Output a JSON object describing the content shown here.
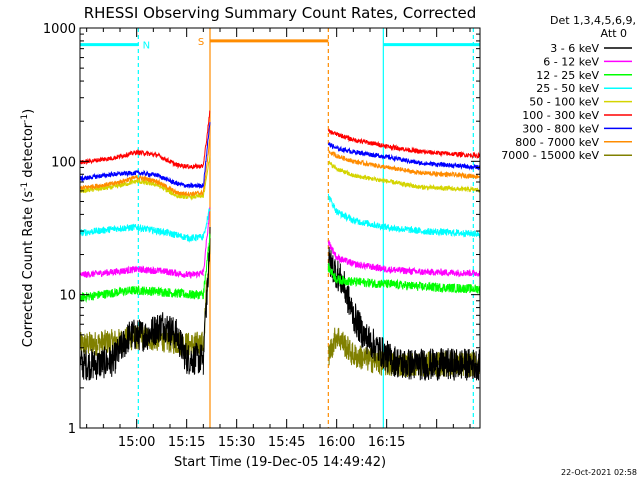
{
  "chart_data": {
    "type": "line",
    "title": "RHESSI Observing Summary Count Rates, Corrected",
    "xlabel": "Start Time (19-Dec-05 14:49:42)",
    "ylabel_main": "Corrected Count Rate (s",
    "ylabel_sup1": "-1",
    "ylabel_mid": " detector",
    "ylabel_sup2": "-1",
    "ylabel_end": ")",
    "yscale": "log",
    "ylim": [
      1,
      1000
    ],
    "xlim_min": [
      -7,
      113
    ],
    "y_ticks": [
      "1",
      "10",
      "100",
      "1000"
    ],
    "x_ticks": [
      {
        "min": 10,
        "label": "15:00"
      },
      {
        "min": 25,
        "label": "15:15"
      },
      {
        "min": 40,
        "label": "15:30"
      },
      {
        "min": 55,
        "label": "15:45"
      },
      {
        "min": 70,
        "label": "16:00"
      },
      {
        "min": 85,
        "label": "16:15"
      }
    ],
    "legend_header": [
      "Det 1,3,4,5,6,9,",
      "Att 0"
    ],
    "legend_placement": "right",
    "series": [
      {
        "name": "3 - 6 keV",
        "color": "#000000"
      },
      {
        "name": "6 - 12 keV",
        "color": "#ff00ff"
      },
      {
        "name": "12 - 25 keV",
        "color": "#00ff00"
      },
      {
        "name": "25 - 50 keV",
        "color": "#00ffff"
      },
      {
        "name": "50 - 100 keV",
        "color": "#d4d400"
      },
      {
        "name": "100 - 300 keV",
        "color": "#ff0000"
      },
      {
        "name": "300 - 800 keV",
        "color": "#0000ff"
      },
      {
        "name": "800 - 7000 keV",
        "color": "#ff8c00"
      },
      {
        "name": "7000 - 15000 keV",
        "color": "#808000"
      }
    ],
    "segments": [
      {
        "from": -7,
        "to": 30,
        "values": [
          [
            [
              -7,
              3
            ],
            [
              -2,
              3
            ],
            [
              3,
              3.2
            ],
            [
              8,
              5
            ],
            [
              13,
              5
            ],
            [
              18,
              6
            ],
            [
              22,
              5
            ],
            [
              25,
              3.3
            ],
            [
              29.5,
              3.3
            ],
            [
              30,
              3.3
            ]
          ],
          [
            [
              -7,
              14
            ],
            [
              3,
              14.8
            ],
            [
              10,
              15.5
            ],
            [
              18,
              15
            ],
            [
              26,
              14
            ],
            [
              29.5,
              14.5
            ],
            [
              30,
              14.5
            ]
          ],
          [
            [
              -7,
              9.5
            ],
            [
              5,
              10.5
            ],
            [
              10,
              10.8
            ],
            [
              18,
              10.5
            ],
            [
              26,
              10
            ],
            [
              29.5,
              10
            ],
            [
              30,
              10
            ]
          ],
          [
            [
              -7,
              29
            ],
            [
              5,
              31.5
            ],
            [
              10,
              32
            ],
            [
              18,
              29.5
            ],
            [
              26,
              26.5
            ],
            [
              29.5,
              27
            ],
            [
              30,
              27
            ]
          ],
          [
            [
              -7,
              60
            ],
            [
              3,
              64
            ],
            [
              10,
              71
            ],
            [
              16,
              67
            ],
            [
              22,
              55
            ],
            [
              26,
              54
            ],
            [
              29.5,
              55
            ],
            [
              30,
              55
            ]
          ],
          [
            [
              -7,
              98
            ],
            [
              3,
              106
            ],
            [
              10,
              117
            ],
            [
              16,
              112
            ],
            [
              22,
              94
            ],
            [
              26,
              91
            ],
            [
              29.5,
              92
            ],
            [
              30,
              92
            ]
          ],
          [
            [
              -7,
              74
            ],
            [
              3,
              80
            ],
            [
              10,
              82
            ],
            [
              16,
              79
            ],
            [
              22,
              68
            ],
            [
              26,
              65
            ],
            [
              29.5,
              66
            ],
            [
              30,
              66
            ]
          ],
          [
            [
              -7,
              63
            ],
            [
              3,
              68
            ],
            [
              10,
              76
            ],
            [
              16,
              71
            ],
            [
              22,
              58
            ],
            [
              26,
              57
            ],
            [
              29.5,
              58
            ],
            [
              30,
              58
            ]
          ],
          [
            [
              -7,
              4.2
            ],
            [
              5,
              4.5
            ],
            [
              10,
              4.8
            ],
            [
              18,
              4.6
            ],
            [
              26,
              4.2
            ],
            [
              29.5,
              4.3
            ],
            [
              30,
              4.3
            ]
          ]
        ]
      },
      {
        "from": 30,
        "to": 32,
        "values": [
          [
            [
              30,
              3.3
            ],
            [
              32,
              25
            ]
          ],
          [
            [
              30,
              14.5
            ],
            [
              32,
              45
            ]
          ],
          [
            [
              30,
              10
            ],
            [
              32,
              28
            ]
          ],
          [
            [
              30,
              27
            ],
            [
              32,
              45
            ]
          ],
          [
            [
              30,
              55
            ],
            [
              32,
              110
            ]
          ],
          [
            [
              30,
              92
            ],
            [
              32,
              240
            ]
          ],
          [
            [
              30,
              66
            ],
            [
              32,
              200
            ]
          ],
          [
            [
              30,
              58
            ],
            [
              32,
              150
            ]
          ],
          [
            [
              30,
              4.3
            ],
            [
              32,
              25
            ]
          ]
        ]
      },
      {
        "from": 67.5,
        "to": 113,
        "values": [
          [
            [
              67.5,
              18
            ],
            [
              69,
              16
            ],
            [
              72,
              12
            ],
            [
              75,
              7
            ],
            [
              78,
              5
            ],
            [
              82,
              4
            ],
            [
              86,
              3.3
            ],
            [
              90,
              3
            ],
            [
              100,
              3
            ],
            [
              113,
              3
            ]
          ],
          [
            [
              67.5,
              25
            ],
            [
              70,
              19
            ],
            [
              75,
              17
            ],
            [
              85,
              15.5
            ],
            [
              95,
              14.8
            ],
            [
              113,
              14.5
            ]
          ],
          [
            [
              67.5,
              16
            ],
            [
              70,
              13
            ],
            [
              75,
              12.5
            ],
            [
              85,
              12
            ],
            [
              95,
              11.5
            ],
            [
              113,
              11
            ]
          ],
          [
            [
              67.5,
              55
            ],
            [
              70,
              42
            ],
            [
              75,
              36
            ],
            [
              85,
              32
            ],
            [
              95,
              30
            ],
            [
              113,
              28.5
            ]
          ],
          [
            [
              67.5,
              98
            ],
            [
              70,
              88
            ],
            [
              75,
              78
            ],
            [
              85,
              71
            ],
            [
              95,
              64
            ],
            [
              113,
              61
            ]
          ],
          [
            [
              67.5,
              168
            ],
            [
              70,
              160
            ],
            [
              75,
              145
            ],
            [
              85,
              130
            ],
            [
              95,
              118
            ],
            [
              113,
              110
            ]
          ],
          [
            [
              67.5,
              135
            ],
            [
              70,
              125
            ],
            [
              75,
              118
            ],
            [
              85,
              108
            ],
            [
              95,
              97
            ],
            [
              113,
              90
            ]
          ],
          [
            [
              67.5,
              118
            ],
            [
              70,
              110
            ],
            [
              75,
              100
            ],
            [
              85,
              90
            ],
            [
              95,
              82
            ],
            [
              113,
              77
            ]
          ],
          [
            [
              67.5,
              3.5
            ],
            [
              70,
              5
            ],
            [
              75,
              3.5
            ],
            [
              85,
              3.0
            ],
            [
              95,
              3.0
            ],
            [
              113,
              3.0
            ]
          ]
        ]
      }
    ],
    "time_bars": [
      {
        "label": "N",
        "color": "#00ffff",
        "y": 750,
        "segments": [
          [
            -7,
            10.5
          ],
          [
            84,
            113
          ]
        ]
      },
      {
        "label": "S",
        "color": "#ff8c00",
        "y": 800,
        "segments": [
          [
            32,
            67.5
          ]
        ]
      }
    ],
    "v_lines": [
      {
        "min": 10.5,
        "color": "#00ffff",
        "style": "dash"
      },
      {
        "min": 32,
        "color": "#ff8c00",
        "style": "solid"
      },
      {
        "min": 67.5,
        "color": "#ff8c00",
        "style": "dash"
      },
      {
        "min": 84,
        "color": "#00ffff",
        "style": "solid"
      },
      {
        "min": 111,
        "color": "#00ffff",
        "style": "dash"
      }
    ],
    "timestamp": "22-Oct-2021 02:58"
  }
}
